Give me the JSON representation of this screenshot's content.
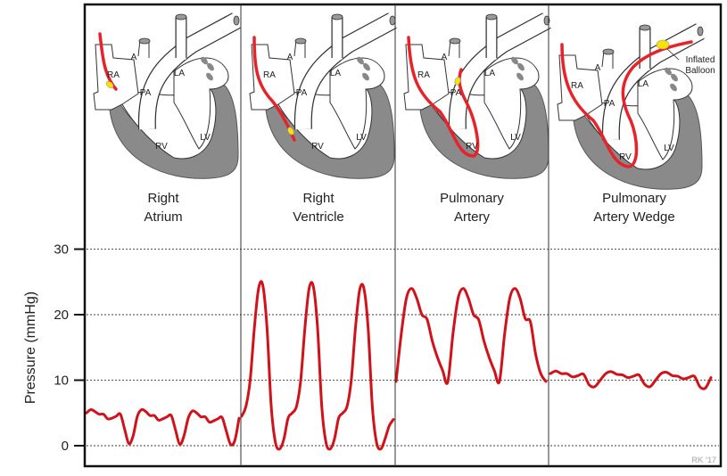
{
  "panels": [
    {
      "title_line1": "Right",
      "title_line2": "Atrium"
    },
    {
      "title_line1": "Right",
      "title_line2": "Ventricle"
    },
    {
      "title_line1": "Pulmonary",
      "title_line2": "Artery"
    },
    {
      "title_line1": "Pulmonary",
      "title_line2": "Artery Wedge"
    }
  ],
  "heart_labels": {
    "ra": "RA",
    "a": "A",
    "pa": "PA",
    "la": "LA",
    "rv": "RV",
    "lv": "LV"
  },
  "balloon_label_line1": "Inflated",
  "balloon_label_line2": "Balloon",
  "signature": "RK '17",
  "colors": {
    "waveform": "#d0121b",
    "catheter": "#e8222a",
    "balloon": "#f5e400",
    "myocardium": "#8a8a8a"
  },
  "chart_data": {
    "type": "line",
    "ylabel": "Pressure (mmHg)",
    "ylim": [
      -3,
      31
    ],
    "yticks": [
      "0",
      "10",
      "20",
      "30"
    ],
    "grid": "horizontal dotted",
    "series": [
      {
        "panel": "Right Atrium",
        "values": [
          5,
          5.5,
          5.2,
          4.8,
          4.8,
          4.1,
          4.2,
          4.5,
          4.8,
          2.5,
          0.3,
          1.5,
          4.5,
          5.5,
          5.2,
          4.6,
          4.6,
          3.9,
          4.1,
          4.4,
          4.6,
          2.4,
          0.2,
          1.5,
          4.2,
          5.3,
          5,
          4.4,
          4.4,
          3.6,
          3.8,
          4.1,
          4.3,
          2.2,
          0.2,
          0.8,
          4.2
        ]
      },
      {
        "panel": "Right Ventricle",
        "values": [
          4.5,
          6,
          10,
          18,
          24,
          24.5,
          18,
          6,
          0.5,
          -0.5,
          1,
          4.2,
          5,
          6,
          10,
          18,
          24,
          24.3,
          18,
          6,
          0.5,
          -0.5,
          1,
          4.2,
          5,
          6,
          10,
          18,
          23.8,
          24,
          18,
          6,
          0.5,
          -0.5,
          1,
          3,
          4
        ]
      },
      {
        "panel": "Pulmonary Artery",
        "values": [
          9.8,
          17,
          22.5,
          24,
          22.5,
          20,
          19.3,
          16,
          13.5,
          11.5,
          9.7,
          17,
          22.5,
          24,
          22.5,
          20,
          19.2,
          16,
          13.5,
          11.5,
          9.8,
          17,
          22.5,
          24,
          22.5,
          19.4,
          18.9,
          14,
          11,
          9.8
        ]
      },
      {
        "panel": "Pulmonary Artery Wedge",
        "values": [
          11,
          11.4,
          11,
          11,
          10.5,
          10.7,
          10.9,
          9.3,
          9,
          10,
          11,
          11.3,
          10.9,
          10.8,
          10.4,
          10.6,
          10.8,
          9.4,
          9,
          10,
          11,
          11.2,
          10.7,
          10.6,
          10.2,
          10.4,
          10.6,
          9,
          8.8,
          10.4
        ]
      }
    ]
  }
}
